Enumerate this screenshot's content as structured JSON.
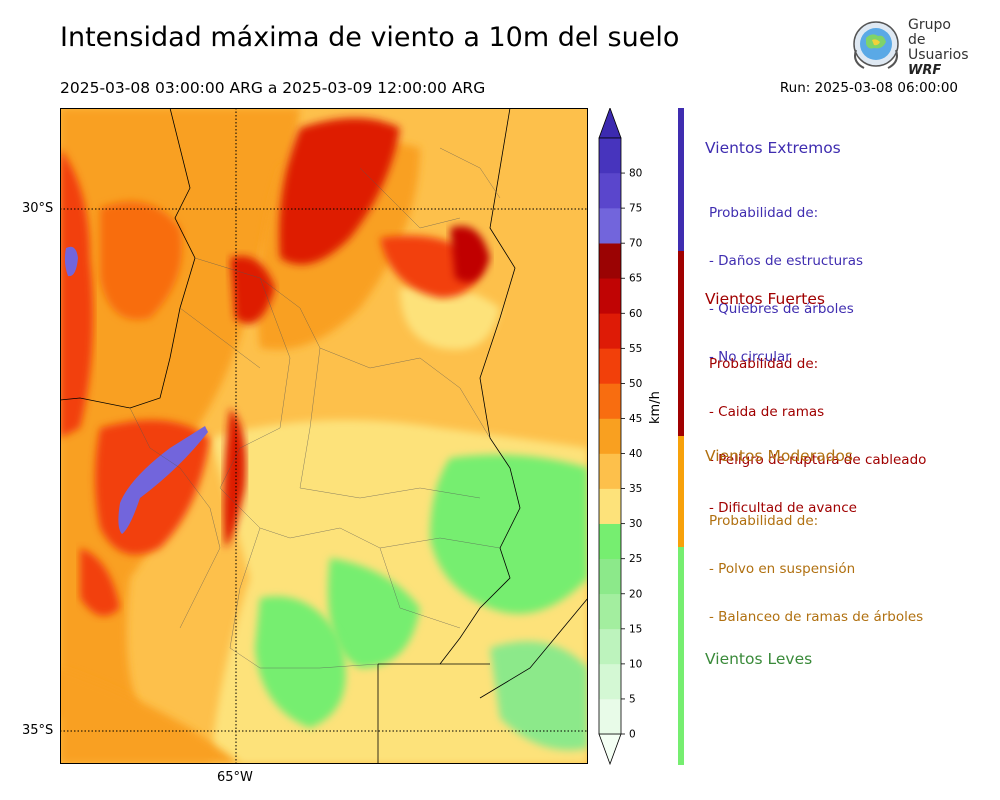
{
  "title": "Intensidad máxima de viento a 10m del suelo",
  "period": "2025-03-08 03:00:00 ARG  a  2025-03-09 12:00:00 ARG",
  "run": "Run: 2025-03-08 06:00:00",
  "logo": {
    "line1": "Grupo de",
    "line2": "Usuarios",
    "line3": "WRF"
  },
  "map": {
    "lat_labels": [
      "30°S",
      "35°S"
    ],
    "lon_labels": [
      "65°W"
    ],
    "gridline_style": "dotted"
  },
  "colorbar": {
    "unit": "km/h",
    "ticks": [
      "0",
      "5",
      "10",
      "15",
      "20",
      "25",
      "30",
      "35",
      "40",
      "45",
      "50",
      "55",
      "60",
      "65",
      "70",
      "75",
      "80"
    ],
    "colors": [
      "#e8fbe8",
      "#d4f8d4",
      "#bdf3bd",
      "#a3ee9f",
      "#8ce98a",
      "#76ee70",
      "#fde27a",
      "#fdc04b",
      "#f9a020",
      "#f86d10",
      "#f2400a",
      "#de1b06",
      "#c00404",
      "#9b0303",
      "#7265dc",
      "#5a46cc",
      "#4734bd"
    ],
    "extend": "both",
    "under_color": "#f4fff4",
    "over_color": "#3c2ab0"
  },
  "legend": {
    "categories": [
      {
        "title": "Vientos Extremos",
        "color": "#3f2db0",
        "lines": [
          "Probabilidad de:",
          "- Daños de estructuras",
          "- Quiebres de árboles",
          "- No circular"
        ]
      },
      {
        "title": "Vientos Fuertes",
        "color": "#a00000",
        "lines": [
          "Probabilidad de:",
          "- Caida de ramas",
          "- Peligro de ruptura de cableado",
          "- Dificultad de avance"
        ]
      },
      {
        "title": "Vientos Moderados",
        "color": "#b07010",
        "lines": [
          "Probabilidad de:",
          "- Polvo en suspensión",
          "- Balanceo de ramas de árboles"
        ]
      },
      {
        "title": "Vientos Leves",
        "color": "#3a8a3a",
        "lines": []
      }
    ],
    "bar_colors": [
      "#3f2db0",
      "#a00000",
      "#f7a10a",
      "#76ee70"
    ]
  }
}
